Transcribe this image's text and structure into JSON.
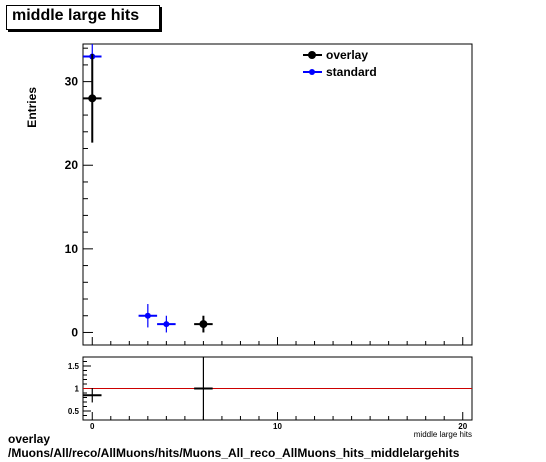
{
  "title": "middle large hits",
  "footer": {
    "line1": "overlay",
    "line2": "/Muons/All/reco/AllMuons/hits/Muons_All_reco_AllMuons_hits_middlelargehits"
  },
  "colors": {
    "overlay": "#000000",
    "standard": "#0000ff",
    "ratio_line": "#cc0000"
  },
  "chart_data": [
    {
      "type": "scatter",
      "ylabel": "Entries",
      "xlim": [
        -0.5,
        20.5
      ],
      "ylim": [
        -1.5,
        34.5
      ],
      "yticks": [
        0,
        10,
        20,
        30
      ],
      "legend": {
        "position": "top-right",
        "entries": [
          "overlay",
          "standard"
        ]
      },
      "series": [
        {
          "name": "overlay",
          "color": "#000000",
          "points": [
            {
              "x": 0,
              "y": 28,
              "err": 5.3
            },
            {
              "x": 6,
              "y": 1,
              "err": 1
            }
          ]
        },
        {
          "name": "standard",
          "color": "#0000ff",
          "points": [
            {
              "x": 0,
              "y": 33,
              "err": 5.7
            },
            {
              "x": 3,
              "y": 2,
              "err": 1.4
            },
            {
              "x": 4,
              "y": 1,
              "err": 1
            }
          ]
        }
      ]
    },
    {
      "type": "scatter",
      "xlabel": "middle large hits",
      "xlim": [
        -0.5,
        20.5
      ],
      "ylim": [
        0.3,
        1.7
      ],
      "xticks": [
        0,
        10,
        20
      ],
      "yticks": [
        0.5,
        1,
        1.5
      ],
      "reference_line": 1,
      "points": [
        {
          "x": 0,
          "y": 0.85,
          "err": 0.16
        },
        {
          "x": 6,
          "y": 1.0,
          "err": 1.0
        }
      ]
    }
  ]
}
